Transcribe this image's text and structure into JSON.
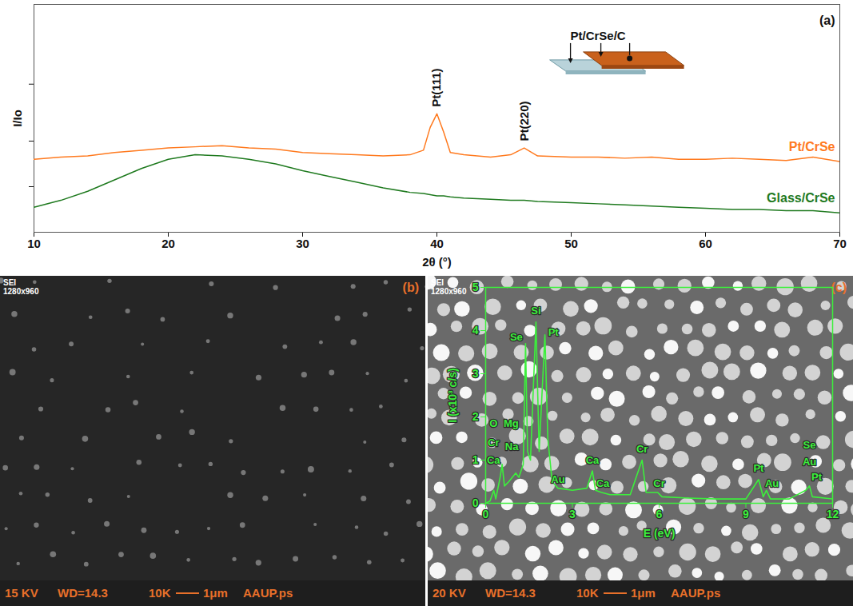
{
  "chart_data": [
    {
      "type": "line",
      "title": "(a)",
      "xlabel": "2θ (°)",
      "ylabel": "I/Io",
      "x": [
        10,
        12,
        14,
        16,
        18,
        20,
        22,
        24,
        26,
        28,
        30,
        32,
        34,
        36,
        38,
        39,
        39.5,
        40,
        40.5,
        41,
        42,
        44,
        45.5,
        46.5,
        47.5,
        50,
        52,
        54,
        56,
        58,
        60,
        62,
        64,
        66,
        68,
        70
      ],
      "series": [
        {
          "name": "Pt/CrSe",
          "color": "#ff7a1f",
          "values": [
            3.2,
            3.3,
            3.35,
            3.5,
            3.6,
            3.7,
            3.75,
            3.8,
            3.7,
            3.65,
            3.5,
            3.45,
            3.4,
            3.35,
            3.4,
            3.6,
            4.6,
            5.2,
            4.4,
            3.5,
            3.4,
            3.3,
            3.4,
            3.7,
            3.35,
            3.3,
            3.3,
            3.25,
            3.3,
            3.2,
            3.2,
            3.25,
            3.2,
            3.15,
            3.3,
            3.1
          ]
        },
        {
          "name": "Glass/CrSe",
          "color": "#1f7a1f",
          "values": [
            1.1,
            1.4,
            1.8,
            2.3,
            2.8,
            3.2,
            3.4,
            3.35,
            3.2,
            3.0,
            2.7,
            2.45,
            2.2,
            1.95,
            1.75,
            1.7,
            1.65,
            1.6,
            1.6,
            1.55,
            1.5,
            1.45,
            1.4,
            1.4,
            1.35,
            1.3,
            1.25,
            1.2,
            1.15,
            1.1,
            1.05,
            1.0,
            1.0,
            0.95,
            0.95,
            0.85
          ]
        }
      ],
      "xlim": [
        10,
        70
      ],
      "xticks": [
        10,
        20,
        30,
        40,
        50,
        60,
        70
      ],
      "ylim": [
        0,
        10
      ],
      "yticks": [
        2,
        4,
        6.5
      ],
      "tick_labels": "x",
      "grid": false,
      "annotations": [
        {
          "text": "Pt(111)",
          "x": 40,
          "y": 5.5
        },
        {
          "text": "Pt(220)",
          "x": 46.5,
          "y": 4.0
        },
        {
          "text": "Pt/CrSe/C",
          "x": 52,
          "y": 8.6
        }
      ]
    },
    {
      "type": "image",
      "title": "(b)",
      "annotations": [
        "SEI",
        "1280x960"
      ],
      "caption": [
        "15 KV",
        "WD=14.3",
        "10K",
        "1μm",
        "AAUP.ps"
      ]
    },
    {
      "type": "image",
      "title": "(c)",
      "annotations": [
        "SEI",
        "1280x960"
      ],
      "caption": [
        "20 KV",
        "WD=14.3",
        "10K",
        "1μm",
        "AAUP.ps"
      ]
    },
    {
      "type": "line",
      "xlabel": "E (eV)",
      "ylabel": "I (x10³ c/s)",
      "color": "#3cf03c",
      "x": [
        0,
        0.15,
        0.28,
        0.35,
        0.5,
        0.57,
        0.65,
        0.8,
        1.04,
        1.15,
        1.25,
        1.3,
        1.38,
        1.45,
        1.55,
        1.74,
        1.85,
        2.05,
        2.15,
        2.3,
        2.5,
        3.0,
        3.5,
        3.69,
        3.8,
        4.01,
        4.3,
        5.0,
        5.41,
        5.55,
        5.95,
        6.1,
        7,
        8,
        9,
        9.44,
        9.6,
        9.71,
        9.85,
        10.5,
        11.07,
        11.2,
        11.3,
        12
      ],
      "values": [
        0,
        0.05,
        0.3,
        0.1,
        0.6,
        0.9,
        0.4,
        0.5,
        0.7,
        0.6,
        0.8,
        0.9,
        3.7,
        1.2,
        1.0,
        4.2,
        1.2,
        3.9,
        1.5,
        0.5,
        0.35,
        0.3,
        0.35,
        0.75,
        0.3,
        0.25,
        0.2,
        0.2,
        1.0,
        0.25,
        0.25,
        0.15,
        0.12,
        0.1,
        0.1,
        0.55,
        0.15,
        0.3,
        0.1,
        0.1,
        0.3,
        0.4,
        0.15,
        0.1
      ],
      "xlim": [
        0,
        12
      ],
      "xticks": [
        0,
        3,
        6,
        9,
        12
      ],
      "ylim": [
        0,
        5
      ],
      "yticks": [
        0,
        1,
        2,
        3,
        4,
        5
      ],
      "grid": false,
      "annotations": [
        {
          "text": "Ca",
          "x": 0.27,
          "y": 1.0
        },
        {
          "text": "Cr",
          "x": 0.27,
          "y": 1.4
        },
        {
          "text": "O",
          "x": 0.27,
          "y": 1.85
        },
        {
          "text": "Na",
          "x": 0.9,
          "y": 1.3
        },
        {
          "text": "Mg",
          "x": 0.88,
          "y": 1.85
        },
        {
          "text": "Se",
          "x": 1.06,
          "y": 3.85
        },
        {
          "text": "Si",
          "x": 1.74,
          "y": 4.45
        },
        {
          "text": "Pt",
          "x": 2.34,
          "y": 3.95
        },
        {
          "text": "Au",
          "x": 2.5,
          "y": 0.55
        },
        {
          "text": "Ca",
          "x": 3.69,
          "y": 1.0
        },
        {
          "text": "Ca",
          "x": 4.05,
          "y": 0.45
        },
        {
          "text": "Cr",
          "x": 5.41,
          "y": 1.25
        },
        {
          "text": "Cr",
          "x": 6.0,
          "y": 0.45
        },
        {
          "text": "Pt",
          "x": 9.44,
          "y": 0.8
        },
        {
          "text": "Au",
          "x": 9.9,
          "y": 0.45
        },
        {
          "text": "Se",
          "x": 11.2,
          "y": 1.35
        },
        {
          "text": "Au",
          "x": 11.2,
          "y": 0.95
        },
        {
          "text": "Pt",
          "x": 11.45,
          "y": 0.6
        }
      ]
    }
  ]
}
